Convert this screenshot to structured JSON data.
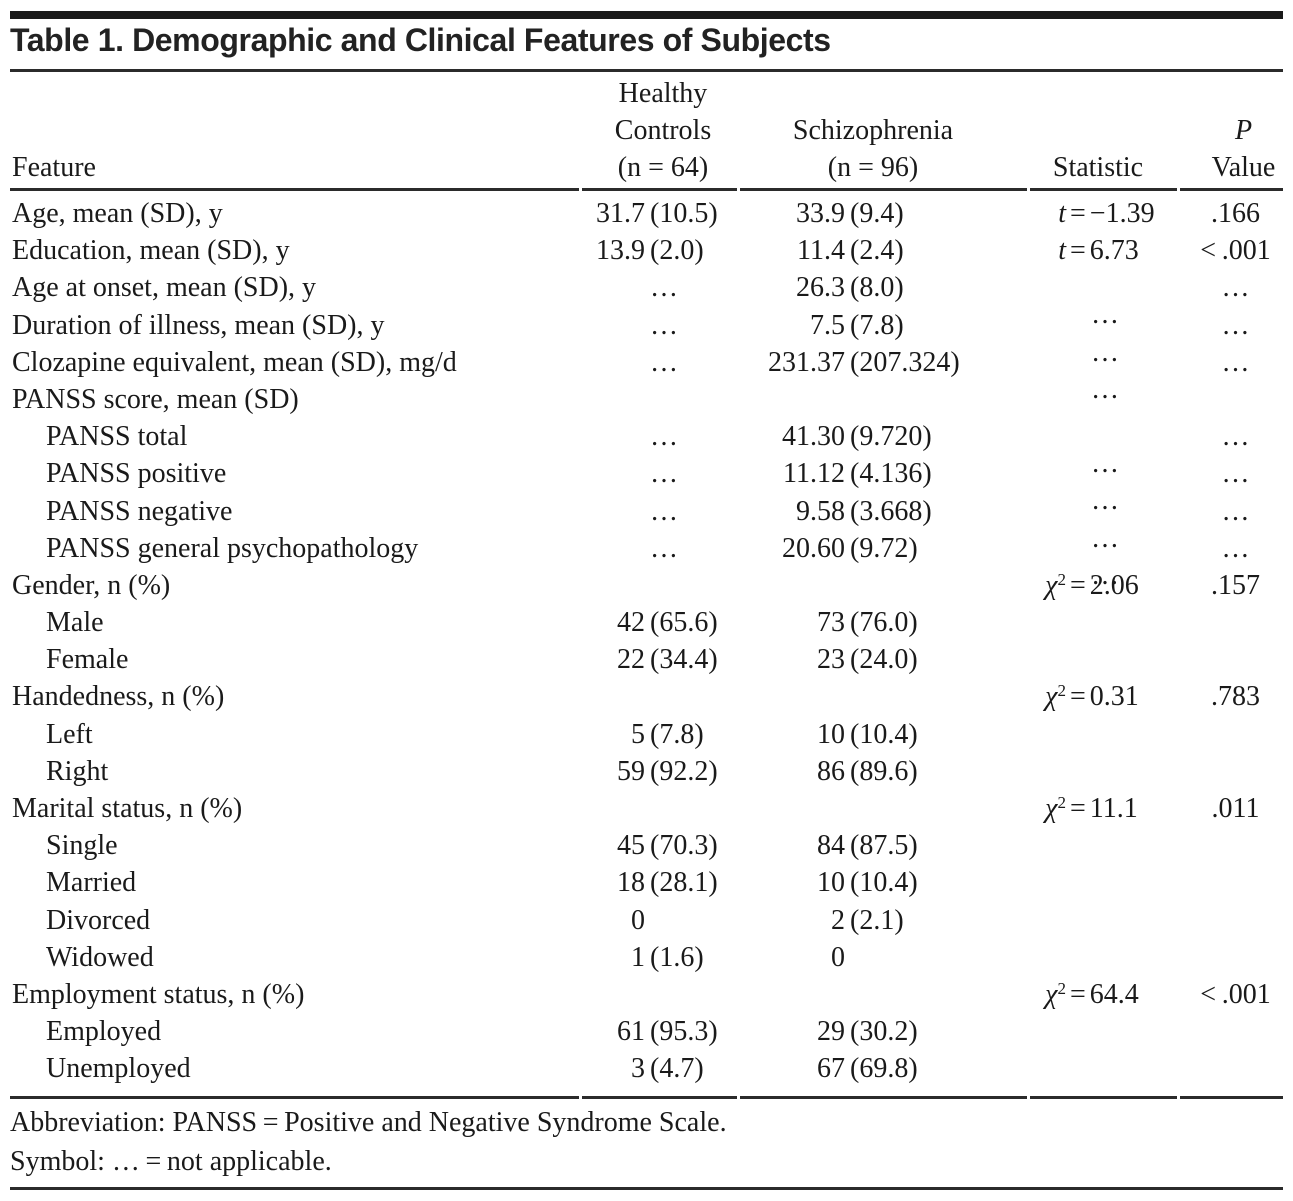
{
  "title": "Table 1. Demographic and Clinical Features of Subjects",
  "colors": {
    "text": "#1a1a1a",
    "rule": "#2b2b2b",
    "background": "#ffffff"
  },
  "header": {
    "feature": "Feature",
    "hc": [
      "Healthy",
      "Controls",
      "(n = 64)"
    ],
    "sz": [
      "Schizophrenia",
      "(n = 96)"
    ],
    "stat": "Statistic",
    "p": [
      "P",
      "Value"
    ]
  },
  "rows": [
    {
      "feature": "Age, mean (SD), y",
      "hc_n": "31.7",
      "hc_s": "(10.5)",
      "sz_n": "33.9",
      "sz_s": "(9.4)",
      "stat_sym": "t",
      "stat_eq": "=",
      "stat_val": "−1.39",
      "p": ".166"
    },
    {
      "feature": "Education, mean (SD), y",
      "hc_n": "13.9",
      "hc_s": "(2.0)",
      "sz_n": "11.4",
      "sz_s": "(2.4)",
      "stat_sym": "t",
      "stat_eq": "=",
      "stat_val": "6.73",
      "p": "< .001"
    },
    {
      "feature": "Age at onset, mean (SD), y",
      "hc_s": "…",
      "sz_n": "26.3",
      "sz_s": "(8.0)",
      "stat_dots": "…",
      "p": "…"
    },
    {
      "feature": "Duration of illness, mean (SD), y",
      "hc_s": "…",
      "sz_n": "7.5",
      "sz_s": "(7.8)",
      "stat_dots": "…",
      "p": "…"
    },
    {
      "feature": "Clozapine equivalent, mean (SD), mg/d",
      "hc_s": "…",
      "sz_n": "231.37",
      "sz_s": "(207.324)",
      "stat_dots": "…",
      "p": "…"
    },
    {
      "feature": "PANSS score, mean (SD)"
    },
    {
      "feature": "PANSS total",
      "hc_s": "…",
      "sz_n": "41.30",
      "sz_s": "(9.720)",
      "stat_dots": "…",
      "p": "…"
    },
    {
      "feature": "PANSS positive",
      "hc_s": "…",
      "sz_n": "11.12",
      "sz_s": "(4.136)",
      "stat_dots": "…",
      "p": "…"
    },
    {
      "feature": "PANSS negative",
      "hc_s": "…",
      "sz_n": "9.58",
      "sz_s": "(3.668)",
      "stat_dots": "…",
      "p": "…"
    },
    {
      "feature": "PANSS general psychopathology",
      "hc_s": "…",
      "sz_n": "20.60",
      "sz_s": "(9.72)",
      "stat_dots": "…",
      "p": "…"
    },
    {
      "feature": "Gender, n (%)",
      "stat_sym": "χ",
      "stat_sup": "2",
      "stat_eq": "=",
      "stat_val": "2.06",
      "p": ".157"
    },
    {
      "feature": "Male",
      "hc_n": "42",
      "hc_s": "(65.6)",
      "sz_n": "73",
      "sz_s": "(76.0)"
    },
    {
      "feature": "Female",
      "hc_n": "22",
      "hc_s": "(34.4)",
      "sz_n": "23",
      "sz_s": "(24.0)"
    },
    {
      "feature": "Handedness, n (%)",
      "stat_sym": "χ",
      "stat_sup": "2",
      "stat_eq": "=",
      "stat_val": "0.31",
      "p": ".783"
    },
    {
      "feature": "Left",
      "hc_n": "5",
      "hc_s": "(7.8)",
      "sz_n": "10",
      "sz_s": "(10.4)"
    },
    {
      "feature": "Right",
      "hc_n": "59",
      "hc_s": "(92.2)",
      "sz_n": "86",
      "sz_s": "(89.6)"
    },
    {
      "feature": "Marital status, n (%)",
      "stat_sym": "χ",
      "stat_sup": "2",
      "stat_eq": "=",
      "stat_val": "11.1",
      "p": ".011"
    },
    {
      "feature": "Single",
      "hc_n": "45",
      "hc_s": "(70.3)",
      "sz_n": "84",
      "sz_s": "(87.5)"
    },
    {
      "feature": "Married",
      "hc_n": "18",
      "hc_s": "(28.1)",
      "sz_n": "10",
      "sz_s": "(10.4)"
    },
    {
      "feature": "Divorced",
      "hc_n": "0",
      "sz_n": "2",
      "sz_s": "(2.1)"
    },
    {
      "feature": "Widowed",
      "hc_n": "1",
      "hc_s": "(1.6)",
      "sz_n": "0"
    },
    {
      "feature": "Employment status, n (%)",
      "stat_sym": "χ",
      "stat_sup": "2",
      "stat_eq": "=",
      "stat_val": "64.4",
      "p": "< .001"
    },
    {
      "feature": "Employed",
      "hc_n": "61",
      "hc_s": "(95.3)",
      "sz_n": "29",
      "sz_s": "(30.2)"
    },
    {
      "feature": "Unemployed",
      "hc_n": "3",
      "hc_s": "(4.7)",
      "sz_n": "67",
      "sz_s": "(69.8)"
    }
  ],
  "footnotes": {
    "abbreviation": "Abbreviation: PANSS = Positive and Negative Syndrome Scale.",
    "symbol": "Symbol: … = not applicable."
  }
}
